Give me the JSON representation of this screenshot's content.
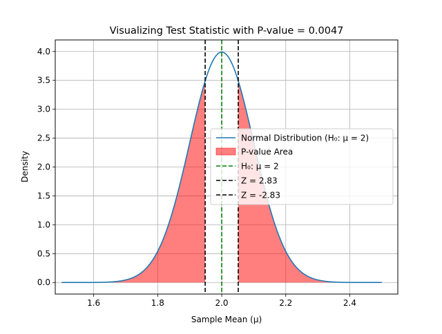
{
  "chart_data": {
    "type": "line",
    "title": "Visualizing Test Statistic with P-value = 0.0047",
    "xlabel": "Sample Mean (μ)",
    "ylabel": "Density",
    "xlim": [
      1.48,
      2.55
    ],
    "ylim": [
      -0.2,
      4.2
    ],
    "x_ticks": [
      1.6,
      1.8,
      2.0,
      2.2,
      2.4
    ],
    "x_tick_labels": [
      "1.6",
      "1.8",
      "2.0",
      "2.2",
      "2.4"
    ],
    "y_ticks": [
      0.0,
      0.5,
      1.0,
      1.5,
      2.0,
      2.5,
      3.0,
      3.5,
      4.0
    ],
    "y_tick_labels": [
      "0.0",
      "0.5",
      "1.0",
      "1.5",
      "2.0",
      "2.5",
      "3.0",
      "3.5",
      "4.0"
    ],
    "grid": true,
    "legend_position": "right",
    "distribution": {
      "mean": 2.0,
      "sd": 0.1,
      "x_range": [
        1.5,
        2.5
      ],
      "peak_density": 3.99
    },
    "p_value": 0.0047,
    "critical_sample_means": [
      1.9483,
      2.0517
    ],
    "series": [
      {
        "name": "Normal Distribution (H₀: μ = 2)",
        "kind": "curve",
        "color": "#1f77b4"
      },
      {
        "name": "P-value Area",
        "kind": "fill",
        "color": "#ff0000",
        "alpha": 0.5
      },
      {
        "name": "H₀: μ = 2",
        "kind": "vline",
        "x": 2.0,
        "color": "#008000"
      },
      {
        "name": "Z = 2.83",
        "kind": "vline",
        "x": 2.0517,
        "color": "#000000"
      },
      {
        "name": "Z = -2.83",
        "kind": "vline",
        "x": 1.9483,
        "color": "#000000"
      }
    ]
  }
}
